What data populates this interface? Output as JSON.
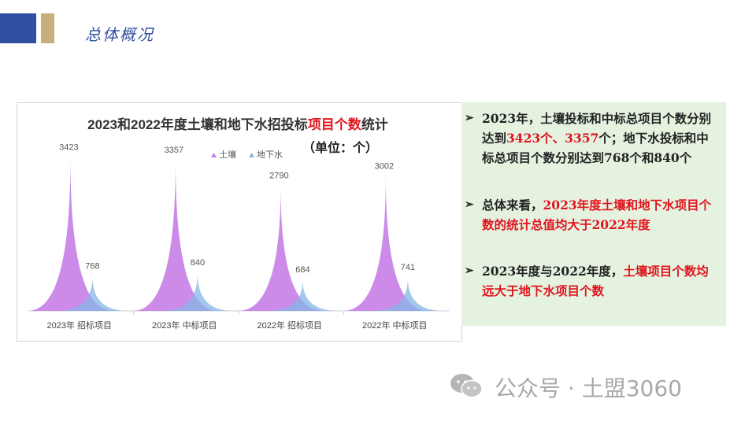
{
  "header": {
    "title": "总体概况"
  },
  "chart_data": {
    "type": "area",
    "title_parts": [
      "2023和2022年度土壤和地下水招投标",
      "项目个数",
      "统计"
    ],
    "unit_note": "（单位：个）",
    "categories": [
      "2023年  招标项目",
      "2023年  中标项目",
      "2022年  招标项目",
      "2022年  中标项目"
    ],
    "series": [
      {
        "name": "土壤",
        "values": [
          3423,
          3357,
          2790,
          3002
        ],
        "color": "#c77ee6"
      },
      {
        "name": "地下水",
        "values": [
          768,
          840,
          684,
          741
        ],
        "color": "#86b6e6"
      }
    ],
    "ylim": [
      0,
      3500
    ],
    "legend_position": "top-center",
    "grid": false
  },
  "summary": {
    "bullets": [
      {
        "parts": [
          {
            "text": "2023年，土壤投标和中标总项目个数分别达到",
            "red": false
          },
          {
            "text": "3423个、3357",
            "red": true
          },
          {
            "text": "个；地下水投标和中标总项目个数分别达到768个和840个",
            "red": false
          }
        ]
      },
      {
        "parts": [
          {
            "text": "总体来看，",
            "red": false
          },
          {
            "text": "2023年度土壤和地下水项目个数的统计总值均大于2022年度",
            "red": true
          }
        ]
      },
      {
        "parts": [
          {
            "text": "2023年度与2022年度，",
            "red": false
          },
          {
            "text": "土壤项目个数均远大于地下水项目个数",
            "red": true
          }
        ]
      }
    ],
    "arrow": "➢"
  },
  "watermark": {
    "text": "公众号 · 土盟3060",
    "icon": "wechat-icon"
  }
}
